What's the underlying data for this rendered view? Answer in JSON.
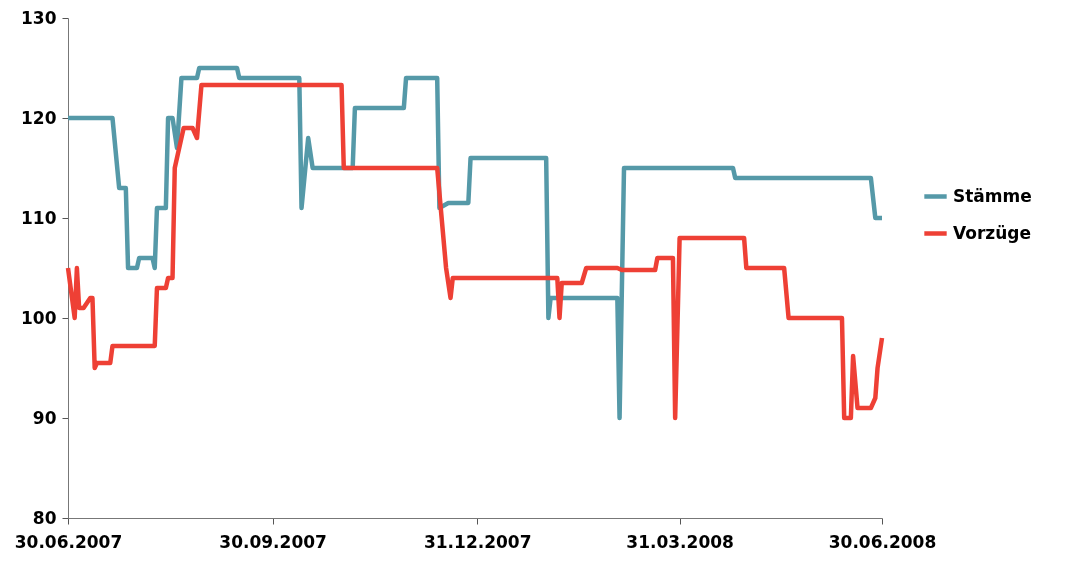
{
  "chart_data": {
    "type": "line",
    "series": [
      {
        "name": "Stämme",
        "color": "#5599a8",
        "x": [
          "2007-06-30",
          "2007-07-20",
          "2007-07-23",
          "2007-07-26",
          "2007-07-27",
          "2007-07-31",
          "2007-08-01",
          "2007-08-07",
          "2007-08-08",
          "2007-08-09",
          "2007-08-13",
          "2007-08-14",
          "2007-08-16",
          "2007-08-18",
          "2007-08-20",
          "2007-08-27",
          "2007-08-28",
          "2007-09-14",
          "2007-09-15",
          "2007-10-12",
          "2007-10-13",
          "2007-10-16",
          "2007-10-18",
          "2007-11-05",
          "2007-11-06",
          "2007-11-28",
          "2007-11-29",
          "2007-12-13",
          "2007-12-14",
          "2007-12-18",
          "2007-12-27",
          "2007-12-28",
          "2008-01-31",
          "2008-02-01",
          "2008-02-02",
          "2008-03-03",
          "2008-03-04",
          "2008-03-06",
          "2008-04-24",
          "2008-04-25",
          "2008-06-25",
          "2008-06-27",
          "2008-06-30"
        ],
        "values": [
          120,
          120,
          113,
          113,
          105,
          105,
          106,
          106,
          105,
          111,
          111,
          120,
          120,
          117,
          124,
          124,
          125,
          125,
          124,
          124,
          111,
          118,
          115,
          115,
          121,
          121,
          124,
          124,
          111,
          111.5,
          111.5,
          116,
          116,
          100,
          102,
          102,
          90,
          115,
          115,
          114,
          114,
          110,
          110
        ]
      },
      {
        "name": "Vorzüge",
        "color": "#ee4035",
        "x": [
          "2007-06-30",
          "2007-07-03",
          "2007-07-04",
          "2007-07-05",
          "2007-07-07",
          "2007-07-10",
          "2007-07-11",
          "2007-07-12",
          "2007-07-13",
          "2007-07-19",
          "2007-07-20",
          "2007-08-08",
          "2007-08-09",
          "2007-08-13",
          "2007-08-14",
          "2007-08-16",
          "2007-08-17",
          "2007-08-21",
          "2007-08-25",
          "2007-08-27",
          "2007-08-29",
          "2007-10-31",
          "2007-11-01",
          "2007-12-13",
          "2007-12-17",
          "2007-12-19",
          "2007-12-20",
          "2008-02-05",
          "2008-02-06",
          "2008-02-07",
          "2008-02-16",
          "2008-02-18",
          "2008-03-03",
          "2008-03-05",
          "2008-03-20",
          "2008-03-21",
          "2008-03-28",
          "2008-03-29",
          "2008-03-31",
          "2008-04-29",
          "2008-04-30",
          "2008-05-17",
          "2008-05-19",
          "2008-06-12",
          "2008-06-13",
          "2008-06-16",
          "2008-06-17",
          "2008-06-19",
          "2008-06-25",
          "2008-06-27",
          "2008-06-28",
          "2008-06-30"
        ],
        "values": [
          105,
          100,
          105,
          101,
          101,
          102,
          102,
          95,
          95.5,
          95.5,
          97.2,
          97.2,
          103,
          103,
          104,
          104,
          115,
          119,
          119,
          118,
          123.3,
          123.3,
          115,
          115,
          105,
          102,
          104,
          104,
          100,
          103.5,
          103.5,
          105,
          105,
          104.8,
          104.8,
          106,
          106,
          90,
          108,
          108,
          105,
          105,
          100,
          100,
          90,
          90,
          96.2,
          91,
          91,
          92,
          95,
          98
        ]
      }
    ],
    "xlim": [
      "2007-06-30",
      "2008-06-30"
    ],
    "xticks": [
      {
        "value": "2007-06-30",
        "label": "30.06.2007"
      },
      {
        "value": "2007-09-30",
        "label": "30.09.2007"
      },
      {
        "value": "2007-12-31",
        "label": "31.12.2007"
      },
      {
        "value": "2008-03-31",
        "label": "31.03.2008"
      },
      {
        "value": "2008-06-30",
        "label": "30.06.2008"
      }
    ],
    "ylim": [
      80,
      130
    ],
    "yticks": [
      80,
      90,
      100,
      110,
      120,
      130
    ],
    "grid": false,
    "legend": "right"
  }
}
